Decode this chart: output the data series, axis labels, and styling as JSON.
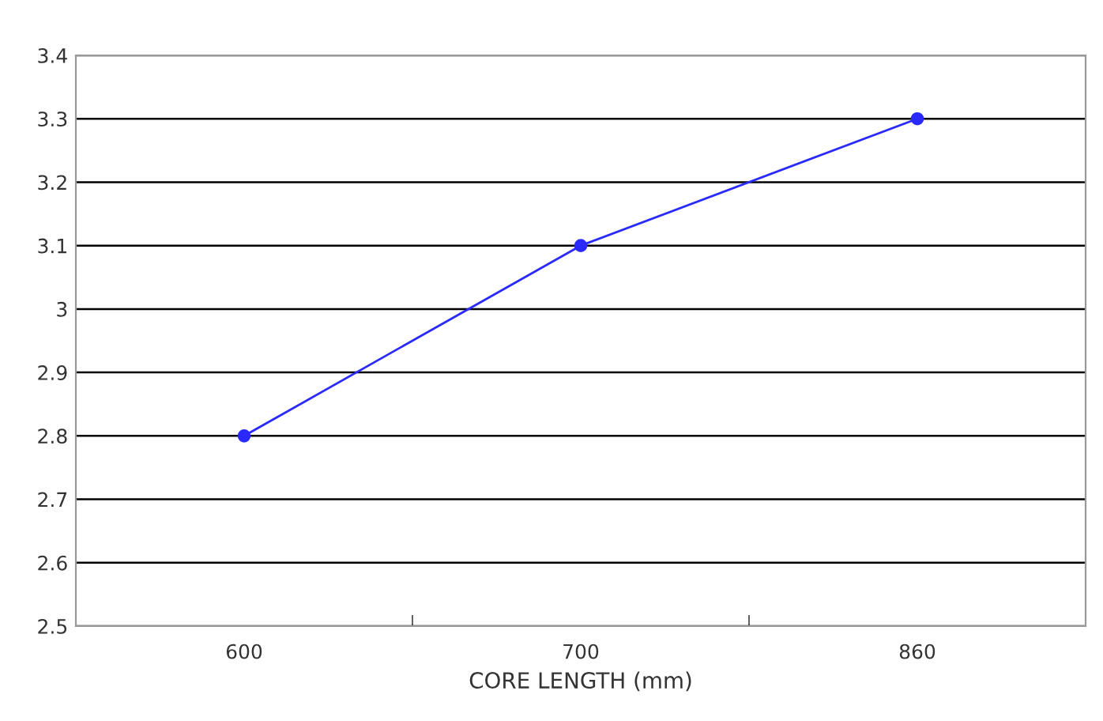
{
  "chart_data": {
    "type": "line",
    "xlabel": "CORE LENGTH (mm)",
    "categories": [
      "600",
      "700",
      "860"
    ],
    "series": [
      {
        "color": "#2a2aff",
        "values": [
          2.8,
          3.1,
          3.3
        ]
      }
    ],
    "ylim": [
      2.5,
      3.4
    ],
    "yticks": [
      2.5,
      2.6,
      2.7,
      2.8,
      2.9,
      3,
      3.1,
      3.2,
      3.3,
      3.4
    ],
    "grid": "y",
    "marker": "circle",
    "line_style": "solid",
    "legend": false
  }
}
